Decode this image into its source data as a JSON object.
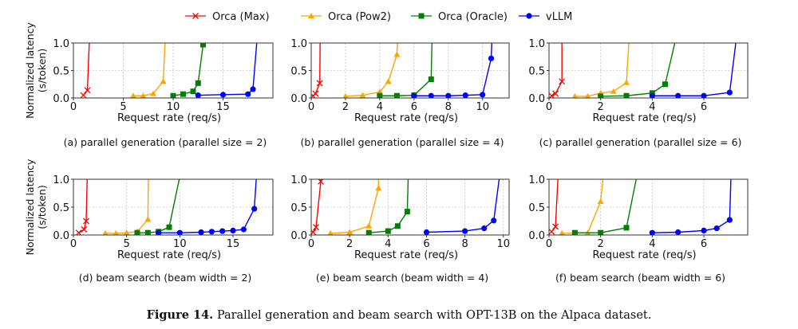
{
  "chart_data": {
    "type": "line",
    "legend": {
      "placement": "top-center",
      "entries": [
        {
          "name": "Orca (Max)",
          "color": "#ff0000",
          "marker": "x"
        },
        {
          "name": "Orca (Pow2)",
          "color": "#ffa500",
          "marker": "triangle"
        },
        {
          "name": "Orca (Oracle)",
          "color": "#008000",
          "marker": "square"
        },
        {
          "name": "vLLM",
          "color": "#0000ff",
          "marker": "circle"
        }
      ]
    },
    "ylabel": "Normalized latency\n(s/token)",
    "xlabel": "Request rate (req/s)",
    "grid": true,
    "ylim": [
      0,
      1.0
    ],
    "yticks": [
      "0.0",
      "0.5",
      "1.0"
    ],
    "subplots": [
      {
        "caption": "(a) parallel generation (parallel size = 2)",
        "xlim": [
          0,
          20
        ],
        "xticks": [
          0,
          5,
          10,
          15
        ],
        "series": [
          [
            [
              1,
              0.05
            ],
            [
              1.4,
              0.14
            ],
            [
              1.6,
              1.05
            ]
          ],
          [
            [
              6,
              0.04
            ],
            [
              7,
              0.04
            ],
            [
              8,
              0.08
            ],
            [
              9,
              0.3
            ],
            [
              9.2,
              1.05
            ]
          ],
          [
            [
              10,
              0.04
            ],
            [
              11,
              0.07
            ],
            [
              12,
              0.12
            ],
            [
              12.5,
              0.27
            ],
            [
              13,
              0.97
            ],
            [
              13.05,
              1.05
            ]
          ],
          [
            [
              12.5,
              0.05
            ],
            [
              15,
              0.06
            ],
            [
              17.5,
              0.07
            ],
            [
              18,
              0.16
            ],
            [
              18.4,
              1.05
            ]
          ]
        ]
      },
      {
        "caption": "(b) parallel generation (parallel size = 4)",
        "xlim": [
          0,
          11.55
        ],
        "xticks": [
          0,
          2,
          4,
          6,
          8,
          10
        ],
        "series": [
          [
            [
              0.1,
              0.04
            ],
            [
              0.25,
              0.08
            ],
            [
              0.5,
              0.27
            ],
            [
              0.52,
              1.05
            ]
          ],
          [
            [
              2,
              0.03
            ],
            [
              3,
              0.05
            ],
            [
              4,
              0.11
            ],
            [
              4.5,
              0.3
            ],
            [
              5,
              0.79
            ],
            [
              5.05,
              1.05
            ]
          ],
          [
            [
              4,
              0.04
            ],
            [
              5,
              0.04
            ],
            [
              6,
              0.05
            ],
            [
              7,
              0.34
            ],
            [
              7.05,
              1.05
            ]
          ],
          [
            [
              6,
              0.04
            ],
            [
              7,
              0.04
            ],
            [
              8,
              0.04
            ],
            [
              9,
              0.05
            ],
            [
              10,
              0.06
            ],
            [
              10.5,
              0.72
            ],
            [
              10.55,
              1.05
            ]
          ]
        ]
      },
      {
        "caption": "(c) parallel generation (parallel size = 6)",
        "xlim": [
          0,
          7.7
        ],
        "xticks": [
          0,
          2,
          4,
          6
        ],
        "series": [
          [
            [
              0.1,
              0.04
            ],
            [
              0.25,
              0.08
            ],
            [
              0.5,
              0.3
            ],
            [
              0.5,
              1.05
            ]
          ],
          [
            [
              1,
              0.03
            ],
            [
              1.5,
              0.03
            ],
            [
              2,
              0.09
            ],
            [
              2.5,
              0.12
            ],
            [
              3,
              0.28
            ],
            [
              3.1,
              1.05
            ]
          ],
          [
            [
              2,
              0.03
            ],
            [
              3,
              0.04
            ],
            [
              4,
              0.09
            ],
            [
              4.5,
              0.25
            ],
            [
              4.9,
              1.05
            ]
          ],
          [
            [
              4,
              0.04
            ],
            [
              5,
              0.04
            ],
            [
              6,
              0.04
            ],
            [
              7,
              0.1
            ],
            [
              7.25,
              1.05
            ]
          ]
        ]
      },
      {
        "caption": "(d) beam search (beam width = 2)",
        "xlim": [
          0,
          18.75
        ],
        "xticks": [
          0,
          5,
          10,
          15
        ],
        "series": [
          [
            [
              0.5,
              0.04
            ],
            [
              1,
              0.1
            ],
            [
              1.2,
              0.25
            ],
            [
              1.3,
              1.05
            ]
          ],
          [
            [
              3,
              0.03
            ],
            [
              4,
              0.03
            ],
            [
              5,
              0.04
            ],
            [
              6,
              0.06
            ],
            [
              7,
              0.28
            ],
            [
              7.05,
              1.05
            ]
          ],
          [
            [
              6,
              0.04
            ],
            [
              7,
              0.04
            ],
            [
              8,
              0.06
            ],
            [
              9,
              0.14
            ],
            [
              10,
              1.05
            ]
          ],
          [
            [
              8,
              0.04
            ],
            [
              10,
              0.04
            ],
            [
              12,
              0.05
            ],
            [
              13,
              0.06
            ],
            [
              14,
              0.07
            ],
            [
              15,
              0.08
            ],
            [
              16,
              0.1
            ],
            [
              17,
              0.47
            ],
            [
              17.2,
              1.05
            ]
          ]
        ]
      },
      {
        "caption": "(e) beam search (beam width = 4)",
        "xlim": [
          0,
          10.3
        ],
        "xticks": [
          0,
          2,
          4,
          6,
          8,
          10
        ],
        "series": [
          [
            [
              0.1,
              0.05
            ],
            [
              0.25,
              0.14
            ],
            [
              0.5,
              0.96
            ],
            [
              0.52,
              1.05
            ]
          ],
          [
            [
              1,
              0.03
            ],
            [
              2,
              0.05
            ],
            [
              3,
              0.16
            ],
            [
              3.5,
              0.84
            ],
            [
              3.5,
              1.05
            ]
          ],
          [
            [
              3,
              0.04
            ],
            [
              4,
              0.07
            ],
            [
              4.5,
              0.16
            ],
            [
              5,
              0.42
            ],
            [
              5.05,
              1.05
            ]
          ],
          [
            [
              6,
              0.05
            ],
            [
              8,
              0.07
            ],
            [
              9,
              0.12
            ],
            [
              9.5,
              0.26
            ],
            [
              9.8,
              1.05
            ]
          ]
        ]
      },
      {
        "caption": "(f) beam search (beam width = 6)",
        "xlim": [
          0,
          7.7
        ],
        "xticks": [
          0,
          2,
          4,
          6
        ],
        "series": [
          [
            [
              0.1,
              0.06
            ],
            [
              0.25,
              0.15
            ],
            [
              0.35,
              1.05
            ]
          ],
          [
            [
              0.5,
              0.03
            ],
            [
              1.5,
              0.04
            ],
            [
              2,
              0.6
            ],
            [
              2.1,
              1.05
            ]
          ],
          [
            [
              1,
              0.04
            ],
            [
              2,
              0.04
            ],
            [
              3,
              0.13
            ],
            [
              3.4,
              1.05
            ]
          ],
          [
            [
              4,
              0.04
            ],
            [
              5,
              0.05
            ],
            [
              6,
              0.08
            ],
            [
              6.5,
              0.12
            ],
            [
              7,
              0.27
            ],
            [
              7.05,
              1.05
            ]
          ]
        ]
      }
    ]
  },
  "figure_caption": {
    "label": "Figure 14.",
    "text": " Parallel generation and beam search with OPT-13B on the Alpaca dataset."
  }
}
